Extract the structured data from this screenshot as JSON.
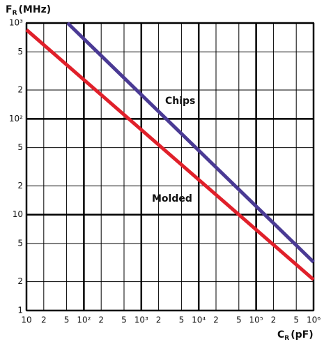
{
  "chart_data": {
    "type": "line",
    "y_label": {
      "text": "F",
      "sub": "R",
      "unit": "(MHz)"
    },
    "x_label": {
      "text": "C",
      "sub": "R",
      "unit": "(pF)"
    },
    "xlog": true,
    "ylog": true,
    "grid": true,
    "xlim": [
      10,
      1000000
    ],
    "ylim": [
      1,
      1000
    ],
    "xticks": [
      {
        "value": 10,
        "label": "10"
      },
      {
        "value": 20,
        "label": "2"
      },
      {
        "value": 50,
        "label": "5"
      },
      {
        "value": 100,
        "label": "10²"
      },
      {
        "value": 200,
        "label": "2"
      },
      {
        "value": 500,
        "label": "5"
      },
      {
        "value": 1000,
        "label": "10³"
      },
      {
        "value": 2000,
        "label": "2"
      },
      {
        "value": 5000,
        "label": "5"
      },
      {
        "value": 10000,
        "label": "10⁴"
      },
      {
        "value": 20000,
        "label": "2"
      },
      {
        "value": 50000,
        "label": "5"
      },
      {
        "value": 100000,
        "label": "10⁵"
      },
      {
        "value": 200000,
        "label": "2"
      },
      {
        "value": 500000,
        "label": "5"
      },
      {
        "value": 1000000,
        "label": "10⁶"
      }
    ],
    "yticks": [
      1,
      {
        "value": 2,
        "label": "2"
      },
      {
        "value": 5,
        "label": "5"
      },
      10,
      {
        "value": 20,
        "label": "2"
      },
      {
        "value": 50,
        "label": "5"
      },
      {
        "value": 100,
        "label": "10²"
      },
      {
        "value": 200,
        "label": "2"
      },
      {
        "value": 500,
        "label": "5"
      },
      {
        "value": 1000,
        "label": "10³"
      }
    ],
    "series": [
      {
        "name": "Molded",
        "color": "#e0202a",
        "x": [
          10,
          1000000
        ],
        "values": [
          850,
          2.1
        ]
      },
      {
        "name": "Chips",
        "color": "#4a3a94",
        "x": [
          52,
          1000000
        ],
        "values": [
          1000,
          3.2
        ]
      }
    ]
  }
}
